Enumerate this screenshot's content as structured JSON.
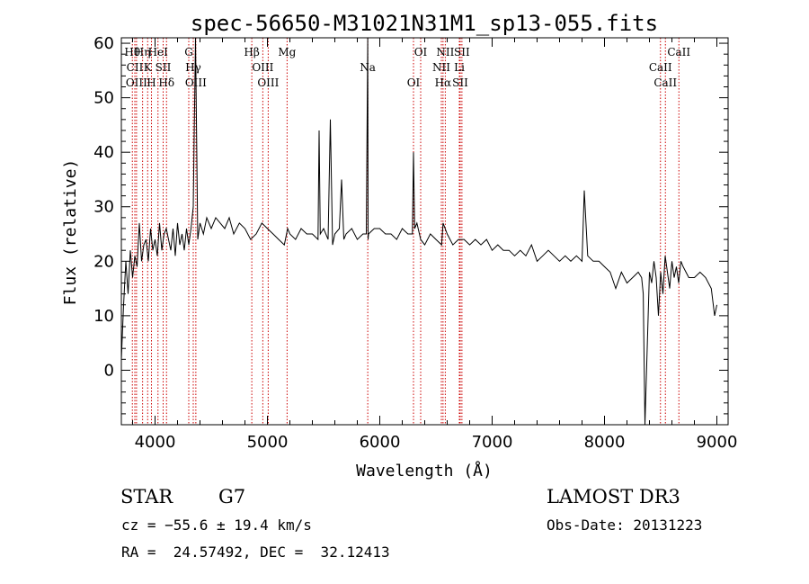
{
  "chart_data": {
    "type": "line",
    "title": "spec-56650-M31021N31M1_sp13-055.fits",
    "xlabel": "Wavelength (Å)",
    "ylabel": "Flux (relative)",
    "xlim": [
      3700,
      9100
    ],
    "ylim": [
      -10,
      61
    ],
    "x_ticks": [
      4000,
      5000,
      6000,
      7000,
      8000,
      9000
    ],
    "y_ticks": [
      0,
      10,
      20,
      30,
      40,
      50,
      60
    ],
    "grid": false,
    "series": [
      {
        "x": [
          3700,
          3720,
          3740,
          3760,
          3780,
          3800,
          3820,
          3840,
          3860,
          3880,
          3900,
          3920,
          3940,
          3960,
          3980,
          4000,
          4020,
          4040,
          4060,
          4080,
          4100,
          4120,
          4140,
          4160,
          4180,
          4200,
          4220,
          4240,
          4260,
          4280,
          4300,
          4320,
          4340,
          4360,
          4380,
          4400,
          4430,
          4460,
          4500,
          4540,
          4580,
          4620,
          4660,
          4700,
          4750,
          4800,
          4850,
          4900,
          4950,
          5000,
          5050,
          5100,
          5150,
          5180,
          5200,
          5250,
          5300,
          5350,
          5400,
          5450,
          5460,
          5470,
          5500,
          5540,
          5560,
          5580,
          5600,
          5640,
          5660,
          5680,
          5700,
          5750,
          5800,
          5850,
          5880,
          5893,
          5896,
          5900,
          5950,
          6000,
          6050,
          6100,
          6150,
          6200,
          6250,
          6290,
          6300,
          6310,
          6330,
          6364,
          6400,
          6450,
          6500,
          6550,
          6563,
          6600,
          6650,
          6700,
          6750,
          6800,
          6850,
          6900,
          6950,
          7000,
          7050,
          7100,
          7150,
          7200,
          7250,
          7300,
          7350,
          7400,
          7450,
          7500,
          7550,
          7600,
          7650,
          7700,
          7750,
          7800,
          7820,
          7850,
          7900,
          7950,
          8000,
          8050,
          8100,
          8150,
          8200,
          8250,
          8300,
          8330,
          8345,
          8360,
          8400,
          8420,
          8440,
          8460,
          8480,
          8500,
          8520,
          8540,
          8560,
          8580,
          8600,
          8620,
          8640,
          8660,
          8680,
          8700,
          8750,
          8800,
          8850,
          8900,
          8950,
          8980,
          9000
        ],
        "y": [
          2,
          12,
          20,
          14,
          22,
          17,
          21,
          19,
          27,
          20,
          23,
          24,
          20,
          26,
          22,
          24,
          21,
          27,
          22,
          25,
          26,
          24,
          22,
          26,
          21,
          27,
          23,
          25,
          22,
          26,
          23,
          26,
          30,
          62,
          24,
          27,
          25,
          28,
          26,
          28,
          27,
          26,
          28,
          25,
          27,
          26,
          24,
          25,
          27,
          26,
          25,
          24,
          23,
          26,
          25,
          24,
          26,
          25,
          25,
          24,
          44,
          25,
          26,
          24,
          46,
          23,
          25,
          26,
          35,
          24,
          25,
          26,
          24,
          25,
          25,
          62,
          24,
          25,
          26,
          26,
          25,
          25,
          24,
          26,
          25,
          25,
          40,
          26,
          27,
          24,
          23,
          25,
          24,
          23,
          27,
          25,
          23,
          24,
          24,
          23,
          24,
          23,
          24,
          22,
          23,
          22,
          22,
          21,
          22,
          21,
          23,
          20,
          21,
          22,
          21,
          20,
          21,
          20,
          21,
          20,
          33,
          21,
          20,
          20,
          19,
          18,
          15,
          18,
          16,
          17,
          18,
          17,
          14,
          -12,
          18,
          16,
          20,
          17,
          10,
          18,
          14,
          21,
          18,
          15,
          20,
          17,
          19,
          16,
          20,
          19,
          17,
          17,
          18,
          17,
          15,
          10,
          12
        ]
      }
    ],
    "line_annotations": [
      {
        "wavelength": 3798,
        "label": "Hθ"
      },
      {
        "wavelength": 3820,
        "label": "CII"
      },
      {
        "wavelength": 3835,
        "label": "OIII"
      },
      {
        "wavelength": 3889,
        "label": "Hη"
      },
      {
        "wavelength": 3934,
        "label": "K"
      },
      {
        "wavelength": 3968,
        "label": "H"
      },
      {
        "wavelength": 4026,
        "label": "HeI"
      },
      {
        "wavelength": 4072,
        "label": "SII"
      },
      {
        "wavelength": 4102,
        "label": "Hδ"
      },
      {
        "wavelength": 4300,
        "label": "G"
      },
      {
        "wavelength": 4340,
        "label": "Hγ"
      },
      {
        "wavelength": 4363,
        "label": "OIII"
      },
      {
        "wavelength": 4861,
        "label": "Hβ"
      },
      {
        "wavelength": 4959,
        "label": "OIII"
      },
      {
        "wavelength": 5007,
        "label": "OIII"
      },
      {
        "wavelength": 5175,
        "label": "Mg"
      },
      {
        "wavelength": 5893,
        "label": "Na"
      },
      {
        "wavelength": 6300,
        "label": "OI"
      },
      {
        "wavelength": 6364,
        "label": "OI"
      },
      {
        "wavelength": 6548,
        "label": "NII"
      },
      {
        "wavelength": 6563,
        "label": "Hα"
      },
      {
        "wavelength": 6583,
        "label": "NII"
      },
      {
        "wavelength": 6708,
        "label": "Li"
      },
      {
        "wavelength": 6716,
        "label": "SII"
      },
      {
        "wavelength": 6731,
        "label": "SII"
      },
      {
        "wavelength": 8498,
        "label": "CaII"
      },
      {
        "wavelength": 8542,
        "label": "CaII"
      },
      {
        "wavelength": 8662,
        "label": "CaII"
      }
    ],
    "colors": {
      "spectrum": "#000000",
      "line_markers": "#cc0000",
      "axes": "#000000"
    }
  },
  "info": {
    "class": "STAR",
    "subclass": "G7",
    "survey": "LAMOST DR3",
    "cz": "cz = −55.6 ± 19.4 km/s",
    "obs_date": "Obs-Date: 20131223",
    "radec": "RA =  24.57492, DEC =  32.12413"
  }
}
